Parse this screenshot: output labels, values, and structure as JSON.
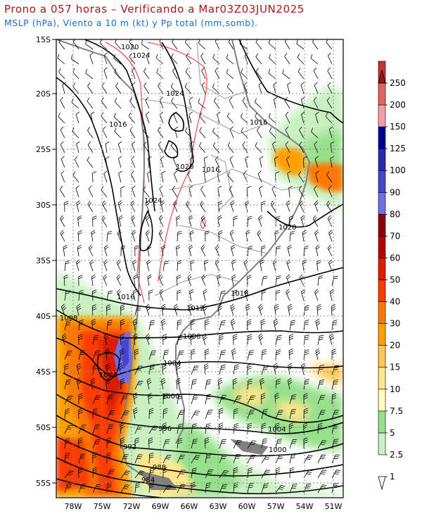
{
  "header": {
    "title": "Prono a 057 horas – Verificando a Mar03Z03JUN2025",
    "subtitle": "MSLP (hPa), Viento a 10 m (kt) y Pp total (mm,somb)."
  },
  "axes": {
    "lat_labels": [
      "15S",
      "20S",
      "25S",
      "30S",
      "35S",
      "40S",
      "45S",
      "50S",
      "55S"
    ],
    "lon_labels": [
      "78W",
      "75W",
      "72W",
      "69W",
      "66W",
      "63W",
      "60W",
      "57W",
      "54W",
      "51W"
    ]
  },
  "isobar_labels": [
    "1020",
    "1024",
    "1024",
    "1016",
    "1016",
    "1020",
    "1016",
    "1024",
    "1020",
    "1016",
    "1016",
    "1012",
    "1008",
    "1008",
    "1004",
    "1004",
    "1000",
    "996",
    "992",
    "988",
    "984",
    "1004",
    "1000"
  ],
  "colorbar": {
    "levels": [
      "1",
      "2.5",
      "5",
      "7.5",
      "10",
      "15",
      "20",
      "30",
      "40",
      "50",
      "60",
      "70",
      "80",
      "90",
      "100",
      "125",
      "150",
      "200",
      "250"
    ],
    "colors": [
      "#f0fff0",
      "#c8f0c0",
      "#96e08c",
      "#ffffc0",
      "#ffe68c",
      "#ffc850",
      "#ffa000",
      "#ff7800",
      "#ff3c00",
      "#dc1e00",
      "#b40000",
      "#8c0000",
      "#6e6ee6",
      "#4646d2",
      "#2828b4",
      "#000096",
      "#f0a0a0",
      "#e06464",
      "#c83232",
      "#a01414"
    ]
  },
  "colors": {
    "title": "#b01414",
    "subtitle": "#1a6ec8",
    "coast": "#808080",
    "isobar": "#000000",
    "highlight_contour": "#ff5050"
  }
}
